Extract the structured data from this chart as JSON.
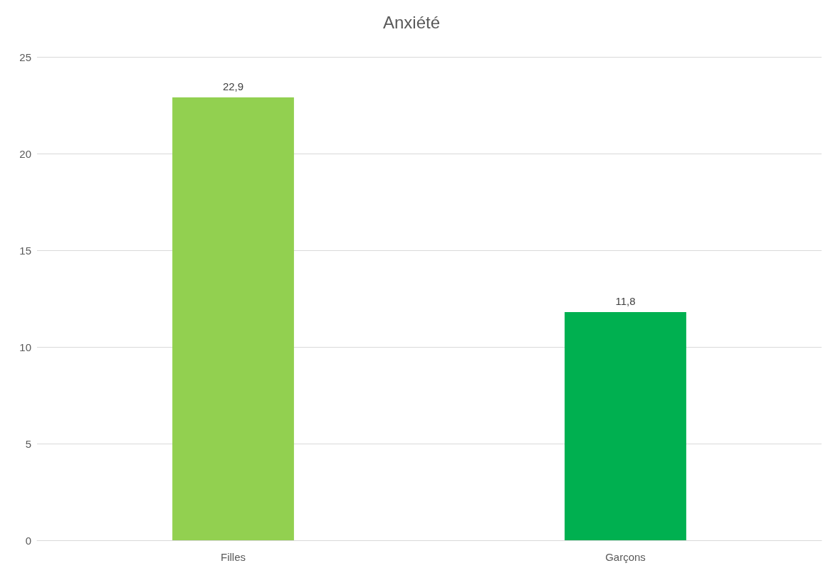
{
  "chart_data": {
    "type": "bar",
    "title": "Anxiété",
    "categories": [
      "Filles",
      "Garçons"
    ],
    "values": [
      22.9,
      11.8
    ],
    "colors": [
      "#92d050",
      "#00b050"
    ],
    "value_labels": [
      "22,9",
      "11,8"
    ],
    "ylim": [
      0,
      25
    ],
    "yticks": [
      0,
      5,
      10,
      15,
      20,
      25
    ],
    "grid": "y"
  }
}
